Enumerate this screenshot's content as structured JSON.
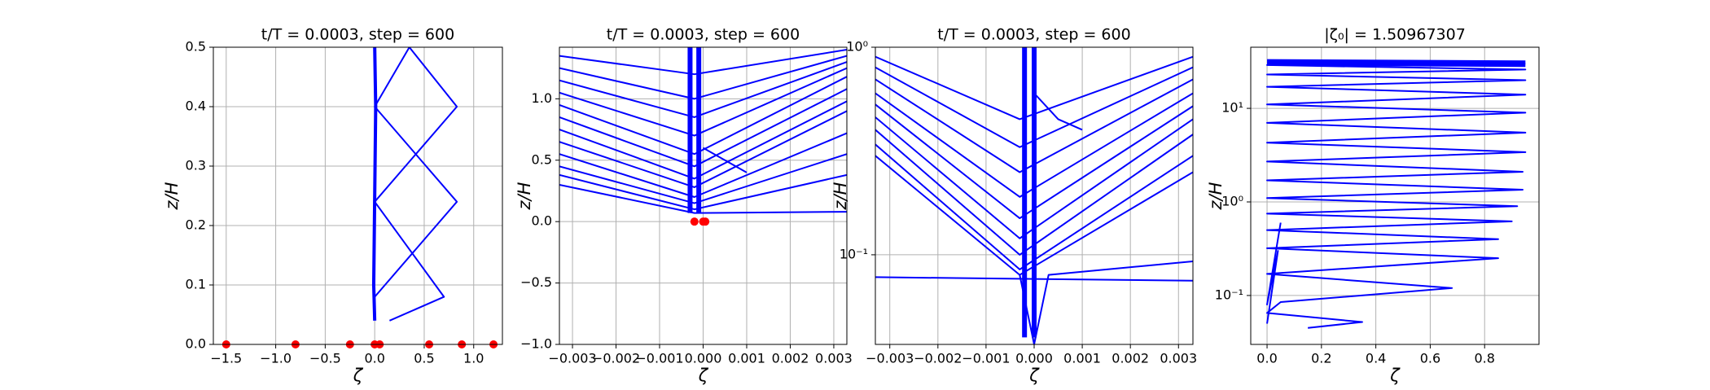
{
  "chart_data": [
    {
      "type": "line",
      "title": "t/T = 0.0003, step = 600",
      "x_label": "ζ",
      "y_label": "z/H",
      "xlim": [
        -1.63,
        1.29
      ],
      "ylim": [
        0,
        0.5
      ],
      "grid": true,
      "color": "#0000ff",
      "xticks": [
        {
          "value": -1.5,
          "label": "−1.5"
        },
        {
          "value": -1,
          "label": "−1.0"
        },
        {
          "value": -0.5,
          "label": "−0.5"
        },
        {
          "value": 0,
          "label": "0.0"
        },
        0.5,
        {
          "value": 1,
          "label": "1.0"
        }
      ],
      "yticks": [
        {
          "value": 0,
          "label": "0.0"
        },
        0.1,
        0.2,
        0.3,
        0.4,
        0.5
      ],
      "series": [
        {
          "x": [
            0,
            -0.01,
            0,
            0.01,
            0
          ],
          "y": [
            0.04,
            0.1,
            0.25,
            0.4,
            0.5
          ],
          "linewidth": 4
        },
        {
          "x": [
            0.15,
            0.7,
            0,
            0.83,
            0.35
          ],
          "y": [
            0.04,
            0.08,
            0.24,
            0.4,
            0.5
          ],
          "linewidth": 2
        },
        {
          "x": [
            0,
            0.83,
            0,
            0.35
          ],
          "y": [
            0.08,
            0.24,
            0.4,
            0.5
          ],
          "linewidth": 2
        }
      ],
      "points": {
        "color": "#ff0000",
        "x": [
          -1.5,
          -0.8,
          -0.25,
          0,
          0.05,
          0.55,
          0.88,
          1.2
        ],
        "y": [
          0,
          0,
          0,
          0,
          0,
          0,
          0,
          0
        ]
      }
    },
    {
      "type": "line",
      "title": "t/T = 0.0003, step = 600",
      "x_label": "ζ",
      "y_label": "z/H",
      "xlim": [
        -0.0033,
        0.0033
      ],
      "ylim": [
        -1,
        1.42
      ],
      "grid": true,
      "color": "#0000ff",
      "xticks": [
        {
          "value": -0.003,
          "label": "−0.003"
        },
        {
          "value": -0.002,
          "label": "−0.002"
        },
        {
          "value": -0.001,
          "label": "−0.001"
        },
        {
          "value": 0,
          "label": "0.000"
        },
        0.001,
        0.002,
        0.003
      ],
      "yticks": [
        {
          "value": -1,
          "label": "−1.0"
        },
        {
          "value": -0.5,
          "label": "−0.5"
        },
        {
          "value": 0,
          "label": "0.0"
        },
        0.5,
        {
          "value": 1,
          "label": "1.0"
        }
      ],
      "series": [
        {
          "x": [
            -0.0033,
            -0.0002,
            0.0033
          ],
          "y": [
            0.3,
            0.07,
            0.08
          ],
          "linewidth": 2
        },
        {
          "x": [
            -0.0033,
            -0.0002,
            0.0033
          ],
          "y": [
            0.38,
            0.1,
            0.38
          ],
          "linewidth": 2
        },
        {
          "x": [
            -0.0033,
            -0.0002,
            0.0033
          ],
          "y": [
            0.45,
            0.15,
            0.55
          ],
          "linewidth": 2
        },
        {
          "x": [
            -0.0033,
            -0.0002,
            0.0033
          ],
          "y": [
            0.55,
            0.2,
            0.72
          ],
          "linewidth": 2
        },
        {
          "x": [
            -0.0033,
            -0.0002,
            0.0033
          ],
          "y": [
            0.65,
            0.28,
            0.9
          ],
          "linewidth": 2
        },
        {
          "x": [
            -0.0033,
            -0.0002,
            0.0033
          ],
          "y": [
            0.75,
            0.35,
            0.98
          ],
          "linewidth": 2
        },
        {
          "x": [
            -0.0033,
            -0.0002,
            0.0033
          ],
          "y": [
            0.85,
            0.45,
            1.08
          ],
          "linewidth": 2
        },
        {
          "x": [
            -0.0033,
            -0.0002,
            0.0033
          ],
          "y": [
            0.95,
            0.55,
            1.18
          ],
          "linewidth": 2
        },
        {
          "x": [
            -0.0033,
            -0.0002,
            0.0033
          ],
          "y": [
            1.05,
            0.7,
            1.25
          ],
          "linewidth": 2
        },
        {
          "x": [
            -0.0033,
            -0.0002,
            0.0033
          ],
          "y": [
            1.15,
            0.85,
            1.3
          ],
          "linewidth": 2
        },
        {
          "x": [
            -0.0033,
            -0.0002,
            0.0033
          ],
          "y": [
            1.25,
            1.0,
            1.35
          ],
          "linewidth": 2
        },
        {
          "x": [
            -0.0033,
            -0.0002,
            0.0033
          ],
          "y": [
            1.35,
            1.2,
            1.4
          ],
          "linewidth": 2
        },
        {
          "x": [
            0,
            0.0005,
            0.001
          ],
          "y": [
            0.6,
            0.5,
            0.4
          ],
          "linewidth": 2
        },
        {
          "x": [
            -0.0003,
            -0.0003
          ],
          "y": [
            0.07,
            1.42
          ],
          "linewidth": 6
        },
        {
          "x": [
            -0.0001,
            -0.0001
          ],
          "y": [
            0.07,
            1.42
          ],
          "linewidth": 6
        }
      ],
      "points": {
        "color": "#ff0000",
        "x": [
          -0.0002,
          0,
          5e-05
        ],
        "y": [
          0,
          0,
          0
        ]
      }
    },
    {
      "type": "line",
      "title": "t/T = 0.0003, step = 600",
      "x_label": "ζ",
      "y_label": "z/H",
      "xlim": [
        -0.0033,
        0.0033
      ],
      "ylim": [
        0.037,
        1
      ],
      "yscale": "log",
      "grid": true,
      "color": "#0000ff",
      "xticks": [
        {
          "value": -0.003,
          "label": "−0.003"
        },
        {
          "value": -0.002,
          "label": "−0.002"
        },
        {
          "value": -0.001,
          "label": "−0.001"
        },
        {
          "value": 0,
          "label": "0.000"
        },
        0.001,
        0.002,
        0.003
      ],
      "yticks": [
        {
          "value": 0.1,
          "label": "10⁻¹"
        },
        {
          "value": 1,
          "label": "10⁰"
        }
      ],
      "series": [
        {
          "x": [
            -0.0033,
            -0.0003,
            0.0033
          ],
          "y": [
            0.3,
            0.08,
            0.25
          ],
          "linewidth": 2
        },
        {
          "x": [
            -0.0033,
            -0.0003,
            0.0033
          ],
          "y": [
            0.34,
            0.085,
            0.3
          ],
          "linewidth": 2
        },
        {
          "x": [
            -0.0033,
            -0.0003,
            0.0033
          ],
          "y": [
            0.4,
            0.1,
            0.38
          ],
          "linewidth": 2
        },
        {
          "x": [
            -0.0033,
            -0.0003,
            0.0033
          ],
          "y": [
            0.46,
            0.12,
            0.45
          ],
          "linewidth": 2
        },
        {
          "x": [
            -0.0033,
            -0.0003,
            0.0033
          ],
          "y": [
            0.53,
            0.15,
            0.52
          ],
          "linewidth": 2
        },
        {
          "x": [
            -0.0033,
            -0.0003,
            0.0033
          ],
          "y": [
            0.6,
            0.19,
            0.6
          ],
          "linewidth": 2
        },
        {
          "x": [
            -0.0033,
            -0.0003,
            0.0033
          ],
          "y": [
            0.7,
            0.25,
            0.7
          ],
          "linewidth": 2
        },
        {
          "x": [
            -0.0033,
            -0.0003,
            0.0033
          ],
          "y": [
            0.8,
            0.33,
            0.8
          ],
          "linewidth": 2
        },
        {
          "x": [
            -0.0033,
            -0.0003,
            0.0033
          ],
          "y": [
            0.9,
            0.45,
            0.9
          ],
          "linewidth": 2
        },
        {
          "x": [
            -0.0003,
            0,
            0.0003,
            0.0033
          ],
          "y": [
            0.08,
            0.037,
            0.08,
            0.093
          ],
          "linewidth": 2
        },
        {
          "x": [
            -0.0033,
            0.0033
          ],
          "y": [
            0.078,
            0.075
          ],
          "linewidth": 2
        },
        {
          "x": [
            0,
            0.0005,
            0.001
          ],
          "y": [
            0.6,
            0.45,
            0.4
          ],
          "linewidth": 2
        },
        {
          "x": [
            -0.0002,
            -0.0002
          ],
          "y": [
            0.04,
            1
          ],
          "linewidth": 6
        },
        {
          "x": [
            0,
            0
          ],
          "y": [
            0.04,
            1
          ],
          "linewidth": 6
        }
      ]
    },
    {
      "type": "line",
      "title": "|ζ₀| = 1.50967307",
      "x_label": "ζ",
      "y_label": "z/H",
      "xlim": [
        -0.06,
        1.0
      ],
      "ylim": [
        0.03,
        45
      ],
      "yscale": "log",
      "grid": true,
      "color": "#0000ff",
      "xticks": [
        {
          "value": 0,
          "label": "0.0"
        },
        0.2,
        0.4,
        0.6,
        0.8
      ],
      "yticks": [
        {
          "value": 0.1,
          "label": "10⁻¹"
        },
        {
          "value": 1,
          "label": "10⁰"
        },
        {
          "value": 10,
          "label": "10¹"
        }
      ],
      "series": [
        {
          "x": [
            0.95,
            0,
            0.95,
            0,
            0.95,
            0,
            0.95,
            0,
            0.95,
            0,
            0.95,
            0,
            0.95,
            0,
            0.94,
            0,
            0.94,
            0,
            0.92,
            0,
            0.9,
            0,
            0.85,
            0,
            0.85,
            0,
            0.68,
            0.05,
            0,
            0.35,
            0.15
          ],
          "y": [
            30,
            29,
            26,
            23,
            20,
            17,
            14,
            11,
            9,
            7,
            5.5,
            4.3,
            3.4,
            2.7,
            2.1,
            1.7,
            1.35,
            1.1,
            0.9,
            0.75,
            0.62,
            0.5,
            0.4,
            0.32,
            0.25,
            0.17,
            0.12,
            0.085,
            0.065,
            0.052,
            0.045
          ],
          "linewidth": 2
        },
        {
          "x": [
            0,
            0.95
          ],
          "y": [
            31,
            30
          ],
          "linewidth": 8
        },
        {
          "x": [
            0,
            0.04,
            0,
            0.05
          ],
          "y": [
            0.05,
            0.3,
            0.08,
            0.6
          ],
          "linewidth": 2
        }
      ]
    }
  ]
}
